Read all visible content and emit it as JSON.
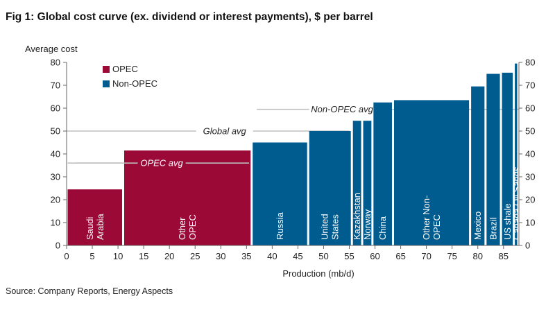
{
  "title": "Fig 1: Global cost curve (ex. dividend or interest payments), $ per barrel",
  "source": "Source: Company Reports, Energy Aspects",
  "colors": {
    "opec": "#9b0a36",
    "nonopec": "#005b8f",
    "reference_line": "#bfbfbf",
    "axis": "#666666"
  },
  "chart_data": {
    "type": "bar",
    "subtype": "variable-width cost curve",
    "xlabel": "Production (mb/d)",
    "ylabel": "Average cost",
    "xlim": [
      0,
      88
    ],
    "ylim": [
      0,
      80
    ],
    "x_ticks": [
      0,
      5,
      10,
      15,
      20,
      25,
      30,
      35,
      40,
      45,
      50,
      55,
      60,
      65,
      70,
      75,
      80,
      85
    ],
    "y_ticks": [
      0,
      10,
      20,
      30,
      40,
      50,
      60,
      70,
      80
    ],
    "secondary_y_axis": true,
    "grid": false,
    "legend_position": "top-left",
    "legend": [
      {
        "label": "OPEC",
        "group": "opec"
      },
      {
        "label": "Non-OPEC",
        "group": "nonopec"
      }
    ],
    "bars": [
      {
        "label": "Saudi Arabia",
        "x0": 0,
        "x1": 11,
        "value": 24.5,
        "group": "opec"
      },
      {
        "label": "Other OPEC",
        "x0": 11,
        "x1": 36,
        "value": 41.5,
        "group": "opec"
      },
      {
        "label": "Russia",
        "x0": 36,
        "x1": 47,
        "value": 45,
        "group": "nonopec"
      },
      {
        "label": "United States",
        "x0": 47,
        "x1": 55.5,
        "value": 50,
        "group": "nonopec"
      },
      {
        "label": "Kazakhstan",
        "x0": 55.5,
        "x1": 57.5,
        "value": 54.5,
        "group": "nonopec"
      },
      {
        "label": "Norway",
        "x0": 57.5,
        "x1": 59.5,
        "value": 54.5,
        "group": "nonopec"
      },
      {
        "label": "China",
        "x0": 59.5,
        "x1": 63.5,
        "value": 62.5,
        "group": "nonopec"
      },
      {
        "label": "Other Non-OPEC",
        "x0": 63.5,
        "x1": 78.5,
        "value": 63.5,
        "group": "nonopec"
      },
      {
        "label": "Mexico",
        "x0": 78.5,
        "x1": 81.5,
        "value": 69.5,
        "group": "nonopec"
      },
      {
        "label": "Brazil",
        "x0": 81.5,
        "x1": 84.5,
        "value": 75,
        "group": "nonopec"
      },
      {
        "label": "US shale",
        "x0": 84.5,
        "x1": 87,
        "value": 75.5,
        "group": "nonopec"
      },
      {
        "label": "Canada Oil Sands",
        "x0": 87,
        "x1": 89,
        "value": 79.5,
        "group": "nonopec"
      }
    ],
    "bar_label_lines": [
      [
        "Saudi",
        "Arabia"
      ],
      [
        "Other",
        "OPEC"
      ],
      [
        "Russia"
      ],
      [
        "United",
        "States"
      ],
      [
        "Kazakhstan"
      ],
      [
        "Norway"
      ],
      [
        "China"
      ],
      [
        "Other Non-",
        "OPEC"
      ],
      [
        "Mexico"
      ],
      [
        "Brazil"
      ],
      [
        "US shale"
      ],
      [
        "Canada Oil Sands"
      ]
    ],
    "reference_lines": [
      {
        "label": "OPEC avg",
        "value": 36,
        "x0": 1.5,
        "x1": 35.5
      },
      {
        "label": "Global avg",
        "value": 50,
        "x0": 0,
        "x1": 55
      },
      {
        "label": "Non-OPEC avg",
        "value": 59.5,
        "x0": 37,
        "x1": 88
      }
    ]
  }
}
